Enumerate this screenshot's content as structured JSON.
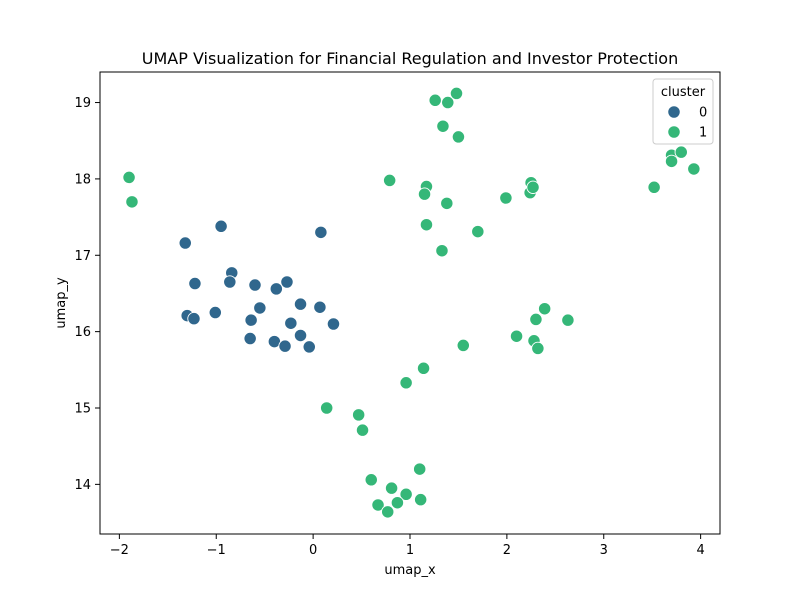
{
  "chart_data": {
    "type": "scatter",
    "title": "UMAP Visualization for Financial Regulation and Investor Protection",
    "xlabel": "umap_x",
    "ylabel": "umap_y",
    "xlim": [
      -2.2,
      4.2
    ],
    "ylim": [
      13.35,
      19.4
    ],
    "xticks": [
      -2,
      -1,
      0,
      1,
      2,
      3,
      4
    ],
    "yticks": [
      14,
      15,
      16,
      17,
      18,
      19
    ],
    "grid": false,
    "legend": {
      "title": "cluster",
      "placement": "top-right",
      "entries": [
        {
          "label": "0",
          "color": "#30678d"
        },
        {
          "label": "1",
          "color": "#35b778"
        }
      ]
    },
    "series": [
      {
        "name": "0",
        "color": "#30678d",
        "points": [
          [
            -0.95,
            17.38
          ],
          [
            -1.32,
            17.16
          ],
          [
            0.08,
            17.3
          ],
          [
            -1.22,
            16.63
          ],
          [
            -0.84,
            16.77
          ],
          [
            -0.86,
            16.65
          ],
          [
            -0.6,
            16.61
          ],
          [
            -0.38,
            16.56
          ],
          [
            -0.27,
            16.65
          ],
          [
            -0.55,
            16.31
          ],
          [
            -0.13,
            16.36
          ],
          [
            0.07,
            16.32
          ],
          [
            -1.01,
            16.25
          ],
          [
            -1.3,
            16.21
          ],
          [
            -1.23,
            16.17
          ],
          [
            -0.64,
            16.15
          ],
          [
            -0.23,
            16.11
          ],
          [
            0.21,
            16.1
          ],
          [
            -0.13,
            15.95
          ],
          [
            -0.65,
            15.91
          ],
          [
            -0.4,
            15.87
          ],
          [
            -0.29,
            15.81
          ],
          [
            -0.04,
            15.8
          ]
        ]
      },
      {
        "name": "1",
        "color": "#35b778",
        "points": [
          [
            -1.9,
            18.02
          ],
          [
            -1.87,
            17.7
          ],
          [
            1.26,
            19.03
          ],
          [
            1.39,
            19.0
          ],
          [
            1.48,
            19.12
          ],
          [
            1.34,
            18.69
          ],
          [
            1.5,
            18.55
          ],
          [
            0.79,
            17.98
          ],
          [
            1.17,
            17.9
          ],
          [
            1.15,
            17.8
          ],
          [
            1.38,
            17.68
          ],
          [
            1.17,
            17.4
          ],
          [
            1.7,
            17.31
          ],
          [
            1.33,
            17.06
          ],
          [
            1.99,
            17.75
          ],
          [
            2.25,
            17.95
          ],
          [
            2.24,
            17.82
          ],
          [
            2.27,
            17.89
          ],
          [
            3.52,
            17.89
          ],
          [
            3.7,
            18.31
          ],
          [
            3.7,
            18.23
          ],
          [
            3.8,
            18.35
          ],
          [
            3.93,
            18.13
          ],
          [
            2.39,
            16.3
          ],
          [
            2.3,
            16.16
          ],
          [
            2.63,
            16.15
          ],
          [
            2.1,
            15.94
          ],
          [
            2.28,
            15.88
          ],
          [
            2.32,
            15.78
          ],
          [
            1.55,
            15.82
          ],
          [
            1.14,
            15.52
          ],
          [
            0.96,
            15.33
          ],
          [
            0.14,
            15.0
          ],
          [
            0.47,
            14.91
          ],
          [
            0.51,
            14.71
          ],
          [
            1.1,
            14.2
          ],
          [
            0.6,
            14.06
          ],
          [
            0.81,
            13.95
          ],
          [
            0.96,
            13.87
          ],
          [
            0.87,
            13.76
          ],
          [
            1.11,
            13.8
          ],
          [
            0.67,
            13.73
          ],
          [
            0.77,
            13.64
          ]
        ]
      }
    ]
  }
}
